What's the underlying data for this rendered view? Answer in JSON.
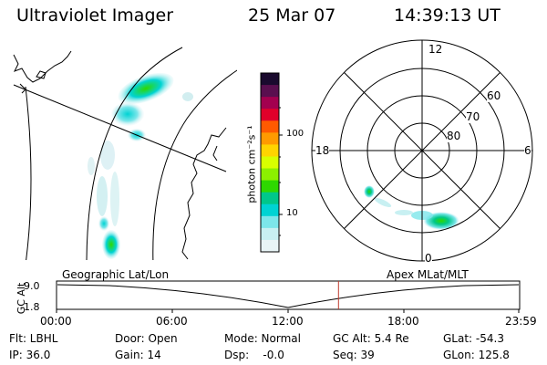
{
  "header": {
    "instrument": "Ultraviolet Imager",
    "date": "25 Mar 07",
    "time": "14:39:13 UT"
  },
  "colorbar": {
    "unit_label": "photon cm⁻²s⁻¹",
    "ticks": [
      "100",
      "10"
    ],
    "colors": [
      "#1a0a2e",
      "#5a0f4f",
      "#a3004f",
      "#e0002a",
      "#ff5a00",
      "#ff9a00",
      "#ffd400",
      "#d8ff00",
      "#8cf000",
      "#2ed800",
      "#00c78a",
      "#00d3d3",
      "#7ce6ea",
      "#c8f0f2",
      "#e8f4f6"
    ]
  },
  "polar_plot": {
    "mlt_labels": {
      "top": "12",
      "left": "18",
      "right": "6",
      "bottom": "0"
    },
    "lat_labels": [
      "60",
      "70",
      "80"
    ]
  },
  "timeline": {
    "left_label": "Geographic Lat/Lon",
    "right_label": "Apex MLat/MLT",
    "y_axis_label": "GC Alt",
    "y_ticks": [
      "9.0",
      "1.8"
    ],
    "time_ticks": [
      "00:00",
      "06:00",
      "12:00",
      "18:00",
      "23:59"
    ],
    "current_time_fraction": 0.61,
    "marker_color": "#c0392b"
  },
  "info": {
    "row1": {
      "filter": "Flt: LBHL",
      "door": "Door: Open",
      "mode": "Mode: Normal",
      "gc_alt": "GC Alt: 5.4 Re",
      "glat": "GLat: -54.3"
    },
    "row2": {
      "ip": "IP: 36.0",
      "gain": "Gain: 14",
      "dsp": "Dsp:    -0.0",
      "seq": "Seq: 39",
      "glon": "GLon: 125.8"
    }
  }
}
